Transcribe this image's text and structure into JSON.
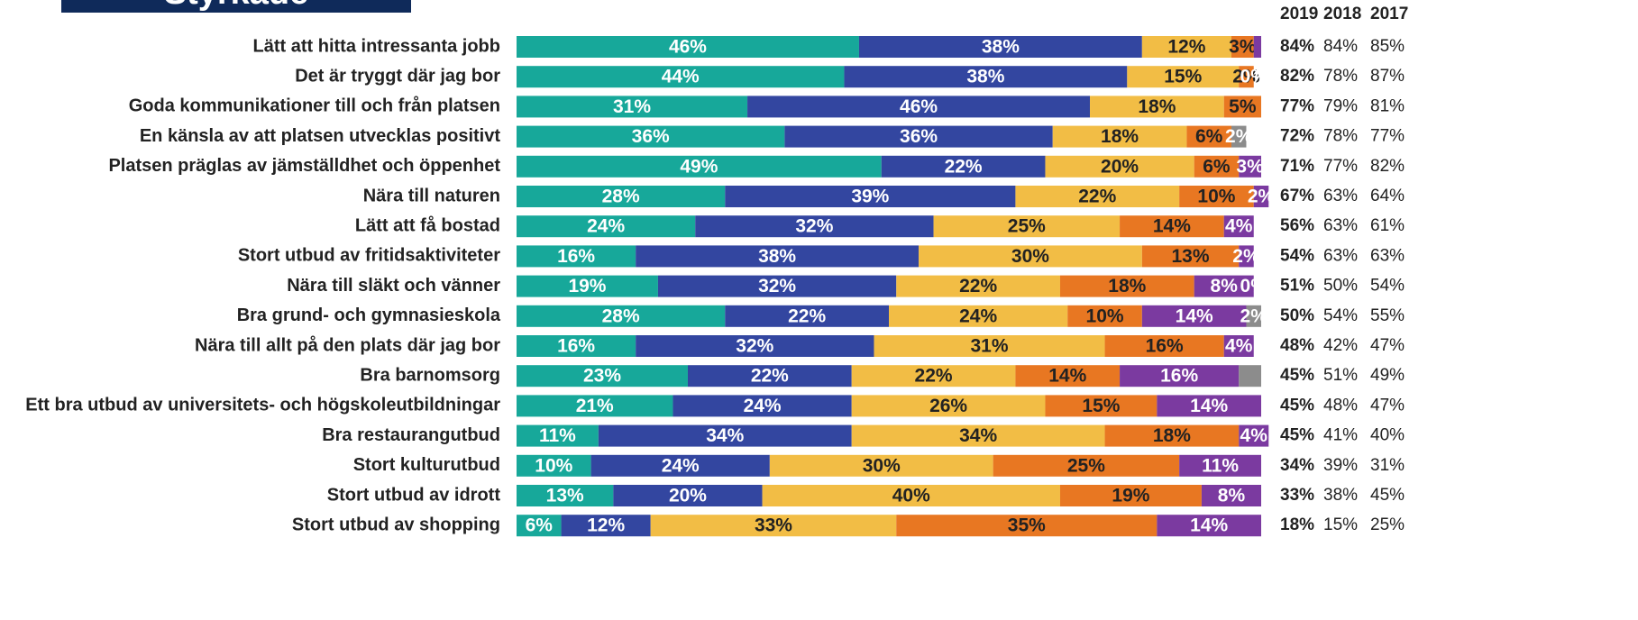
{
  "header": {
    "title": "Styrkade"
  },
  "chart_data": {
    "type": "stacked-bar-horizontal",
    "categories": [
      "Lätt att hitta intressanta jobb",
      "Det är tryggt där jag bor",
      "Goda kommunikationer till och från platsen",
      "En känsla av att platsen utvecklas positivt",
      "Platsen präglas av jämställdhet och öppenhet",
      "Nära till naturen",
      "Lätt att få bostad",
      "Stort utbud av fritidsaktiviteter",
      "Nära till släkt och vänner",
      "Bra grund- och gymnasieskola",
      "Nära till allt på den plats där jag bor",
      "Bra barnomsorg",
      "Ett bra utbud av universitets- och högskoleutbildningar",
      "Bra restaurangutbud",
      "Stort kulturutbud",
      "Stort utbud av idrott",
      "Stort utbud av shopping"
    ],
    "series": [
      {
        "color": "#17a89a",
        "label_color": "#ffffff",
        "values": [
          46,
          44,
          31,
          36,
          49,
          28,
          24,
          16,
          19,
          28,
          16,
          23,
          21,
          11,
          10,
          13,
          6
        ],
        "value_labels": [
          "46%",
          "44%",
          "31%",
          "36%",
          "49%",
          "28%",
          "24%",
          "16%",
          "19%",
          "28%",
          "16%",
          "23%",
          "21%",
          "11%",
          "10%",
          "13%",
          "6%"
        ]
      },
      {
        "color": "#3346a0",
        "label_color": "#ffffff",
        "values": [
          38,
          38,
          46,
          36,
          22,
          39,
          32,
          38,
          32,
          22,
          32,
          22,
          24,
          34,
          24,
          20,
          12
        ],
        "value_labels": [
          "38%",
          "38%",
          "46%",
          "36%",
          "22%",
          "39%",
          "32%",
          "38%",
          "32%",
          "22%",
          "32%",
          "22%",
          "24%",
          "34%",
          "24%",
          "20%",
          "12%"
        ]
      },
      {
        "color": "#f2bd45",
        "label_color": "#222222",
        "values": [
          12,
          15,
          18,
          18,
          20,
          22,
          25,
          30,
          22,
          24,
          31,
          22,
          26,
          34,
          30,
          40,
          33
        ],
        "value_labels": [
          "12%",
          "15%",
          "18%",
          "18%",
          "20%",
          "22%",
          "25%",
          "30%",
          "22%",
          "24%",
          "31%",
          "22%",
          "26%",
          "34%",
          "30%",
          "40%",
          "33%"
        ]
      },
      {
        "color": "#e87722",
        "label_color": "#222222",
        "values": [
          3,
          2,
          5,
          6,
          6,
          10,
          14,
          13,
          18,
          10,
          16,
          14,
          15,
          18,
          25,
          19,
          35
        ],
        "value_labels": [
          "3%",
          "2%",
          "5%",
          "6%",
          "6%",
          "10%",
          "14%",
          "13%",
          "18%",
          "10%",
          "16%",
          "14%",
          "15%",
          "18%",
          "25%",
          "19%",
          "35%"
        ]
      },
      {
        "color": "#7b3aa0",
        "label_color": "#ffffff",
        "values": [
          1,
          0,
          0,
          0,
          3,
          2,
          4,
          2,
          8,
          14,
          4,
          16,
          14,
          4,
          11,
          8,
          14
        ],
        "value_labels": [
          null,
          "0%",
          null,
          null,
          "3%",
          "2%",
          "4%",
          "2%",
          "8%",
          "14%",
          "4%",
          "16%",
          "14%",
          "4%",
          "11%",
          "8%",
          "14%"
        ]
      },
      {
        "color": "#8c8c8c",
        "label_color": "#ffffff",
        "values": [
          0,
          0,
          0,
          2,
          0,
          0,
          0,
          0,
          0,
          2,
          0,
          3,
          0,
          0,
          0,
          0,
          0
        ],
        "value_labels": [
          null,
          null,
          null,
          "2%",
          null,
          null,
          null,
          null,
          "0%",
          "2%",
          null,
          null,
          null,
          null,
          null,
          null,
          null
        ]
      }
    ]
  },
  "summary": {
    "headers": [
      "2019",
      "2018",
      "2017"
    ],
    "rows": [
      [
        "84%",
        "84%",
        "85%"
      ],
      [
        "82%",
        "78%",
        "87%"
      ],
      [
        "77%",
        "79%",
        "81%"
      ],
      [
        "72%",
        "78%",
        "77%"
      ],
      [
        "71%",
        "77%",
        "82%"
      ],
      [
        "67%",
        "63%",
        "64%"
      ],
      [
        "56%",
        "63%",
        "61%"
      ],
      [
        "54%",
        "63%",
        "63%"
      ],
      [
        "51%",
        "50%",
        "54%"
      ],
      [
        "50%",
        "54%",
        "55%"
      ],
      [
        "48%",
        "42%",
        "47%"
      ],
      [
        "45%",
        "51%",
        "49%"
      ],
      [
        "45%",
        "48%",
        "47%"
      ],
      [
        "45%",
        "41%",
        "40%"
      ],
      [
        "34%",
        "39%",
        "31%"
      ],
      [
        "33%",
        "38%",
        "45%"
      ],
      [
        "18%",
        "15%",
        "25%"
      ]
    ]
  }
}
